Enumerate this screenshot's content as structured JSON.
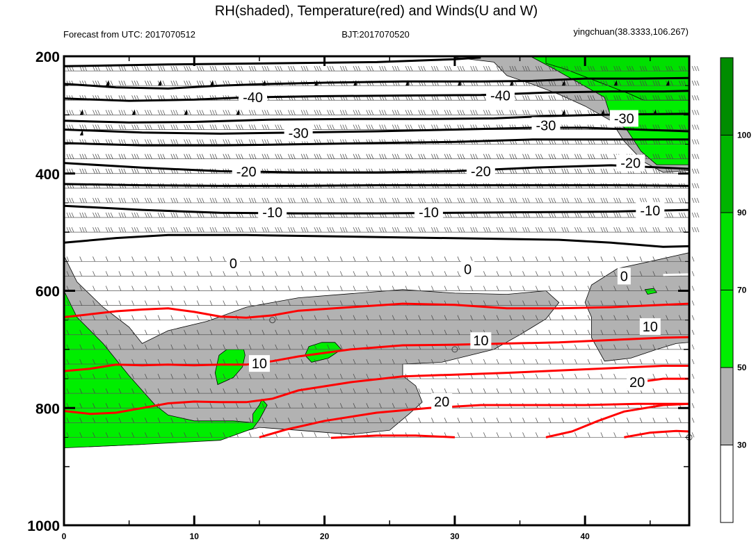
{
  "chart_data": {
    "type": "contour",
    "title": "RH(shaded), Temperature(red) and Winds(U and W)",
    "subtitle_left": "Forecast from UTC: 2017070512",
    "subtitle_center": "BJT:2017070520",
    "subtitle_right": "yingchuan(38.3333,106.267)",
    "x_ticks": [
      "0",
      "10",
      "20",
      "30",
      "40"
    ],
    "x_tick_values": [
      0,
      10,
      20,
      30,
      40
    ],
    "xlim": [
      0,
      48
    ],
    "y_ticks": [
      "200",
      "400",
      "600",
      "800",
      "1000"
    ],
    "y_tick_values": [
      200,
      400,
      600,
      800,
      1000
    ],
    "ylim": [
      200,
      1000
    ],
    "colorbar": {
      "labels": [
        "30",
        "50",
        "70",
        "90",
        "100"
      ],
      "bins": [
        {
          "from": 0,
          "to": 30,
          "color": "#ffffff"
        },
        {
          "from": 30,
          "to": 50,
          "color": "#b2b2b2"
        },
        {
          "from": 50,
          "to": 70,
          "color": "#00ee00"
        },
        {
          "from": 70,
          "to": 90,
          "color": "#00e000"
        },
        {
          "from": 90,
          "to": 100,
          "color": "#00b400"
        },
        {
          "from": 100,
          "to": 110,
          "color": "#008c00"
        }
      ]
    },
    "temperature_levels": {
      "black": [
        "-40",
        "-30",
        "-20",
        "-10",
        "0"
      ],
      "red": [
        "10",
        "20"
      ]
    },
    "contour_labels": [
      {
        "text": "-40",
        "x": 14.5,
        "y": 270
      },
      {
        "text": "-40",
        "x": 33.5,
        "y": 267
      },
      {
        "text": "-30",
        "x": 18.0,
        "y": 331
      },
      {
        "text": "-30",
        "x": 37.0,
        "y": 318
      },
      {
        "text": "-30",
        "x": 43.0,
        "y": 306
      },
      {
        "text": "-20",
        "x": 14.0,
        "y": 397
      },
      {
        "text": "-20",
        "x": 32.0,
        "y": 396
      },
      {
        "text": "-20",
        "x": 43.5,
        "y": 382
      },
      {
        "text": "-10",
        "x": 16.0,
        "y": 466
      },
      {
        "text": "-10",
        "x": 28.0,
        "y": 466
      },
      {
        "text": "-10",
        "x": 45.0,
        "y": 463
      },
      {
        "text": "0",
        "x": 13.0,
        "y": 553
      },
      {
        "text": "0",
        "x": 31.0,
        "y": 563
      },
      {
        "text": "0",
        "x": 43.0,
        "y": 575
      },
      {
        "text": "10",
        "x": 15.0,
        "y": 724
      },
      {
        "text": "10",
        "x": 32.0,
        "y": 685
      },
      {
        "text": "10",
        "x": 45.0,
        "y": 661
      },
      {
        "text": "20",
        "x": 29.0,
        "y": 789
      },
      {
        "text": "20",
        "x": 44.0,
        "y": 756
      }
    ]
  }
}
